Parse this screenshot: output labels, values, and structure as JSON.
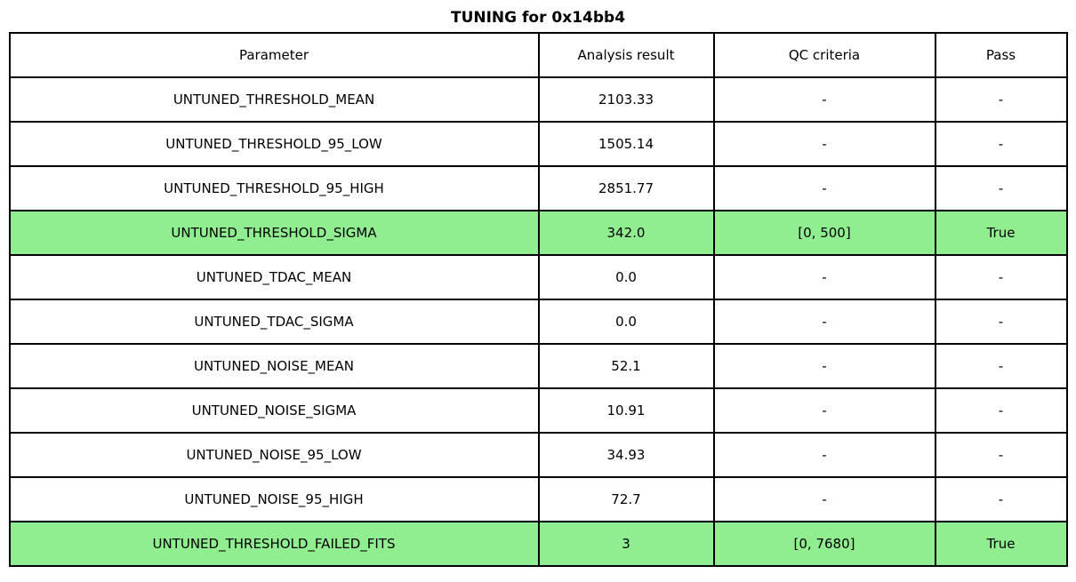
{
  "title": "TUNING for 0x14bb4",
  "colors": {
    "highlight_pass_row": "#90EE90",
    "border": "#000000",
    "text": "#000000",
    "background": "#ffffff"
  },
  "table": {
    "columns": [
      "Parameter",
      "Analysis result",
      "QC criteria",
      "Pass"
    ],
    "rows": [
      {
        "parameter": "UNTUNED_THRESHOLD_MEAN",
        "analysis_result": "2103.33",
        "qc_criteria": "-",
        "pass": "-",
        "highlight": false
      },
      {
        "parameter": "UNTUNED_THRESHOLD_95_LOW",
        "analysis_result": "1505.14",
        "qc_criteria": "-",
        "pass": "-",
        "highlight": false
      },
      {
        "parameter": "UNTUNED_THRESHOLD_95_HIGH",
        "analysis_result": "2851.77",
        "qc_criteria": "-",
        "pass": "-",
        "highlight": false
      },
      {
        "parameter": "UNTUNED_THRESHOLD_SIGMA",
        "analysis_result": "342.0",
        "qc_criteria": "[0, 500]",
        "pass": "True",
        "highlight": true
      },
      {
        "parameter": "UNTUNED_TDAC_MEAN",
        "analysis_result": "0.0",
        "qc_criteria": "-",
        "pass": "-",
        "highlight": false
      },
      {
        "parameter": "UNTUNED_TDAC_SIGMA",
        "analysis_result": "0.0",
        "qc_criteria": "-",
        "pass": "-",
        "highlight": false
      },
      {
        "parameter": "UNTUNED_NOISE_MEAN",
        "analysis_result": "52.1",
        "qc_criteria": "-",
        "pass": "-",
        "highlight": false
      },
      {
        "parameter": "UNTUNED_NOISE_SIGMA",
        "analysis_result": "10.91",
        "qc_criteria": "-",
        "pass": "-",
        "highlight": false
      },
      {
        "parameter": "UNTUNED_NOISE_95_LOW",
        "analysis_result": "34.93",
        "qc_criteria": "-",
        "pass": "-",
        "highlight": false
      },
      {
        "parameter": "UNTUNED_NOISE_95_HIGH",
        "analysis_result": "72.7",
        "qc_criteria": "-",
        "pass": "-",
        "highlight": false
      },
      {
        "parameter": "UNTUNED_THRESHOLD_FAILED_FITS",
        "analysis_result": "3",
        "qc_criteria": "[0, 7680]",
        "pass": "True",
        "highlight": true
      }
    ]
  },
  "chart_data": {
    "type": "table",
    "title": "TUNING for 0x14bb4",
    "columns": [
      "Parameter",
      "Analysis result",
      "QC criteria",
      "Pass"
    ],
    "rows": [
      [
        "UNTUNED_THRESHOLD_MEAN",
        "2103.33",
        "-",
        "-"
      ],
      [
        "UNTUNED_THRESHOLD_95_LOW",
        "1505.14",
        "-",
        "-"
      ],
      [
        "UNTUNED_THRESHOLD_95_HIGH",
        "2851.77",
        "-",
        "-"
      ],
      [
        "UNTUNED_THRESHOLD_SIGMA",
        "342.0",
        "[0, 500]",
        "True"
      ],
      [
        "UNTUNED_TDAC_MEAN",
        "0.0",
        "-",
        "-"
      ],
      [
        "UNTUNED_TDAC_SIGMA",
        "0.0",
        "-",
        "-"
      ],
      [
        "UNTUNED_NOISE_MEAN",
        "52.1",
        "-",
        "-"
      ],
      [
        "UNTUNED_NOISE_SIGMA",
        "10.91",
        "-",
        "-"
      ],
      [
        "UNTUNED_NOISE_95_LOW",
        "34.93",
        "-",
        "-"
      ],
      [
        "UNTUNED_NOISE_95_HIGH",
        "72.7",
        "-",
        "-"
      ],
      [
        "UNTUNED_THRESHOLD_FAILED_FITS",
        "3",
        "[0, 7680]",
        "True"
      ]
    ],
    "highlighted_row_indices": [
      3,
      10
    ],
    "layout_hints": {
      "highlight_color": "#90EE90",
      "grid": true,
      "header_row": true,
      "all_cells_centered": true
    }
  }
}
